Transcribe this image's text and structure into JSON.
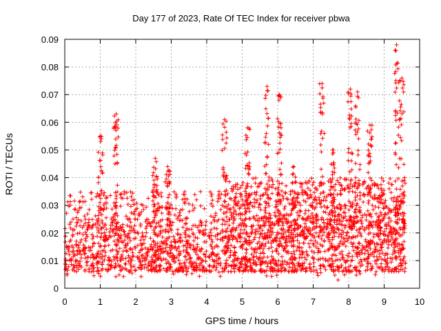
{
  "chart_data": {
    "type": "scatter",
    "title": "Day 177 of 2023, Rate Of TEC Index for receiver pbwa",
    "xlabel": "GPS time / hours",
    "ylabel": "ROTI / TECUs",
    "xlim": [
      0,
      10
    ],
    "ylim": [
      0,
      0.09
    ],
    "x_ticks": [
      0,
      1,
      2,
      3,
      4,
      5,
      6,
      7,
      8,
      9,
      10
    ],
    "x_tick_labels": [
      "0",
      "1",
      "2",
      "3",
      "4",
      "5",
      "6",
      "7",
      "8",
      "9",
      "10"
    ],
    "y_ticks": [
      0,
      0.01,
      0.02,
      0.03,
      0.04,
      0.05,
      0.06,
      0.07,
      0.08,
      0.09
    ],
    "y_tick_labels": [
      "0",
      "0.01",
      "0.02",
      "0.03",
      "0.04",
      "0.05",
      "0.06",
      "0.07",
      "0.08",
      "0.09"
    ],
    "grid": true,
    "marker": "+",
    "marker_color": "#ff0000",
    "series": [
      {
        "name": "ROTI",
        "x_range": [
          0,
          9.6
        ],
        "dense_band": [
          0.006,
          0.025
        ],
        "bursts": [
          {
            "x": 1.0,
            "peak": 0.055
          },
          {
            "x": 1.45,
            "peak": 0.063
          },
          {
            "x": 2.55,
            "peak": 0.047
          },
          {
            "x": 2.9,
            "peak": 0.044
          },
          {
            "x": 4.5,
            "peak": 0.061
          },
          {
            "x": 5.15,
            "peak": 0.058
          },
          {
            "x": 5.7,
            "peak": 0.073
          },
          {
            "x": 6.05,
            "peak": 0.07
          },
          {
            "x": 6.45,
            "peak": 0.044
          },
          {
            "x": 7.25,
            "peak": 0.074
          },
          {
            "x": 7.55,
            "peak": 0.05
          },
          {
            "x": 8.05,
            "peak": 0.072
          },
          {
            "x": 8.25,
            "peak": 0.071
          },
          {
            "x": 8.6,
            "peak": 0.059
          },
          {
            "x": 9.35,
            "peak": 0.088
          },
          {
            "x": 9.5,
            "peak": 0.076
          }
        ],
        "min_value": 0.003,
        "max_value": 0.088
      }
    ]
  }
}
